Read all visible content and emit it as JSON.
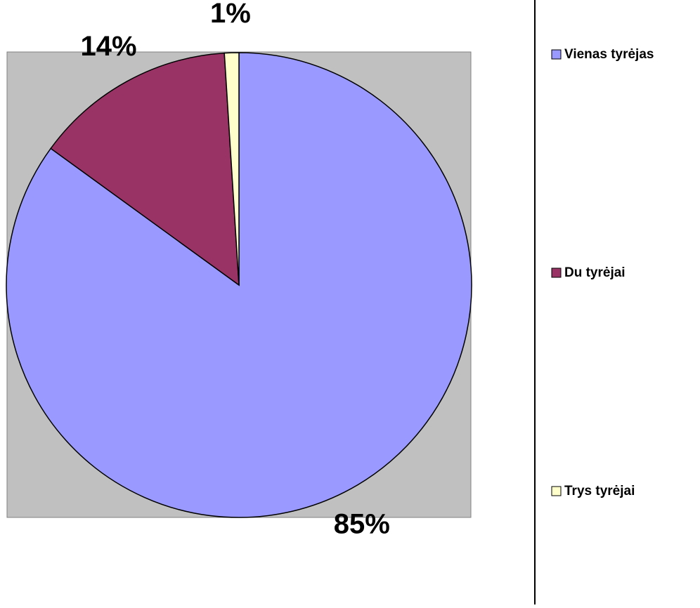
{
  "chart_data": {
    "type": "pie",
    "categories": [
      "Vienas tyrėjas",
      "Du tyrėjai",
      "Trys tyrėjai"
    ],
    "values": [
      85,
      14,
      1
    ],
    "value_labels": [
      "85%",
      "14%",
      "1%"
    ],
    "colors": [
      "#9999ff",
      "#993366",
      "#ffffcc"
    ]
  }
}
